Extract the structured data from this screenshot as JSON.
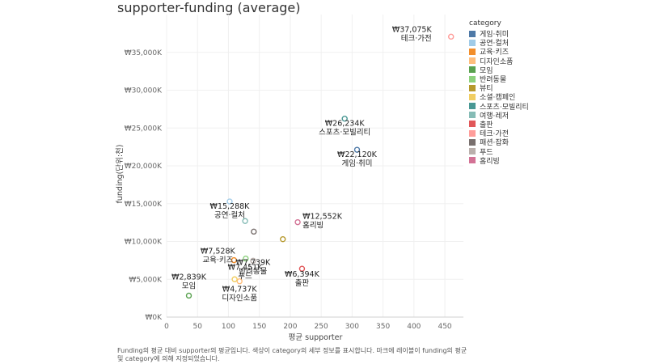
{
  "title": "supporter-funding (average)",
  "caption": "Funding의 평균 대비 supporter의 평균입니다. 색상이 category의 세부 정보를 표시합니다. 마크에 레이블이 funding의 평균 및 category에 의해 지정되었습니다.",
  "chart_data": {
    "type": "scatter",
    "title": "supporter-funding (average)",
    "xlabel": "평균 supporter",
    "ylabel": "funding(단위:천)",
    "xlim": [
      0,
      480
    ],
    "ylim": [
      0,
      40000
    ],
    "x_ticks": [
      0,
      50,
      100,
      150,
      200,
      250,
      300,
      350,
      400,
      450
    ],
    "y_ticks": [
      0,
      5000,
      10000,
      15000,
      20000,
      25000,
      30000,
      35000
    ],
    "y_tick_labels": [
      "₩0K",
      "₩5,000K",
      "₩10,000K",
      "₩15,000K",
      "₩20,000K",
      "₩25,000K",
      "₩30,000K",
      "₩35,000K"
    ],
    "legend_title": "category",
    "legend_position": "right",
    "grid": true,
    "points": [
      {
        "category": "게임·취미",
        "x": 308,
        "y": 22120,
        "label_value": "₩22,120K",
        "color": "#4e79a7"
      },
      {
        "category": "공연·컬처",
        "x": 102,
        "y": 15288,
        "label_value": "₩15,288K",
        "color": "#a0cbe8"
      },
      {
        "category": "교육·키즈",
        "x": 109,
        "y": 7528,
        "label_value": "₩7,528K",
        "color": "#f28e2b"
      },
      {
        "category": "디자인소품",
        "x": 118,
        "y": 4737,
        "label_value": "₩4,737K",
        "color": "#ffbe7d"
      },
      {
        "category": "모임",
        "x": 36,
        "y": 2839,
        "label_value": "₩2,839K",
        "color": "#59a14f"
      },
      {
        "category": "반려동물",
        "x": 128,
        "y": 7739,
        "label_value": "₩7,739K",
        "color": "#8cd17d"
      },
      {
        "category": "뷰티",
        "x": 188,
        "y": 10300,
        "label_value": "",
        "color": "#b6992d"
      },
      {
        "category": "소셜·캠페인",
        "x": 110,
        "y": 5000,
        "label_value": "",
        "color": "#f1ce63"
      },
      {
        "category": "스포츠·모빌리티",
        "x": 288,
        "y": 26234,
        "label_value": "₩26,234K",
        "color": "#499894"
      },
      {
        "category": "여행·레저",
        "x": 127,
        "y": 12700,
        "label_value": "",
        "color": "#86bcb6"
      },
      {
        "category": "출판",
        "x": 219,
        "y": 6394,
        "label_value": "₩6,394K",
        "color": "#e15759"
      },
      {
        "category": "테크·가전",
        "x": 460,
        "y": 37075,
        "label_value": "₩37,075K",
        "color": "#ff9d9a"
      },
      {
        "category": "패션·잡화",
        "x": 141,
        "y": 11300,
        "label_value": "",
        "color": "#79706e"
      },
      {
        "category": "푸드",
        "x": 140,
        "y": 7451,
        "label_value": "₩7,451K",
        "color": "#bab0ac"
      },
      {
        "category": "홈리빙",
        "x": 212,
        "y": 12552,
        "label_value": "₩12,552K",
        "color": "#d37295"
      }
    ]
  }
}
